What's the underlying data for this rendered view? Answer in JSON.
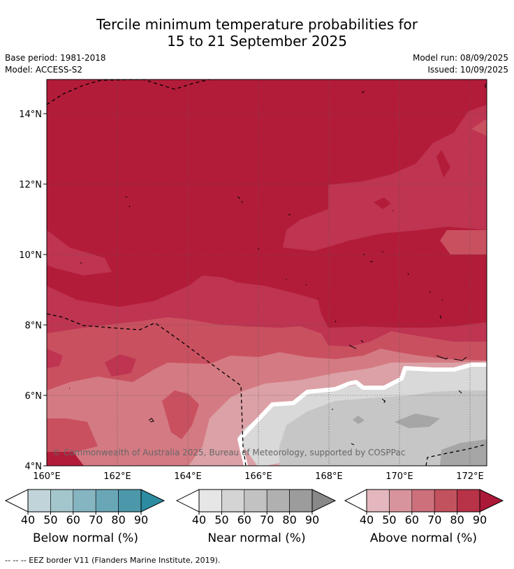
{
  "header": {
    "title_line1": "Tercile minimum temperature probabilities for",
    "title_line2": "15 to 21 September 2025",
    "base_period": "Base period: 1981-2018",
    "model": "Model: ACCESS-S2",
    "model_run": "Model run: 08/09/2025",
    "issued": "Issued: 10/09/2025"
  },
  "map": {
    "lat_labels": [
      "14°N",
      "12°N",
      "10°N",
      "8°N",
      "6°N",
      "4°N"
    ],
    "lon_labels": [
      "160°E",
      "162°E",
      "164°E",
      "166°E",
      "168°E",
      "170°E",
      "172°E"
    ],
    "credit": "© Commonwealth of Australia 2025, Bureau of Meteorology, supported by COSPPac",
    "colors": {
      "above_90": "#b31c39",
      "above_80": "#be3451",
      "above_70": "#c9505f",
      "above_60": "#d47a82",
      "above_50": "#dca1a7",
      "near_50": "#d9d9d9",
      "near_60": "#c6c6c6",
      "near_70": "#a6a6a6",
      "white": "#ffffff"
    }
  },
  "colorbars": [
    {
      "caption": "Below normal (%)",
      "ticks": [
        "40",
        "50",
        "60",
        "70",
        "80",
        "90"
      ],
      "colors": [
        "#ffffff",
        "#c0d4da",
        "#a3c5cc",
        "#86b5c2",
        "#6aa7b6",
        "#4c97aa",
        "#2c8ba1"
      ]
    },
    {
      "caption": "Near normal (%)",
      "ticks": [
        "40",
        "50",
        "60",
        "70",
        "80",
        "90"
      ],
      "colors": [
        "#ffffff",
        "#e6e6e6",
        "#d4d4d4",
        "#c2c2c2",
        "#b0b0b0",
        "#9c9c9c",
        "#888888"
      ]
    },
    {
      "caption": "Above normal (%)",
      "ticks": [
        "40",
        "50",
        "60",
        "70",
        "80",
        "90"
      ],
      "colors": [
        "#ffffff",
        "#e3b7bd",
        "#d8949c",
        "#cd707c",
        "#c3525f",
        "#b83248",
        "#ac1838"
      ]
    }
  ],
  "footnote": "--  --  -- EEZ border V11 (Flanders Marine Institute, 2019)."
}
